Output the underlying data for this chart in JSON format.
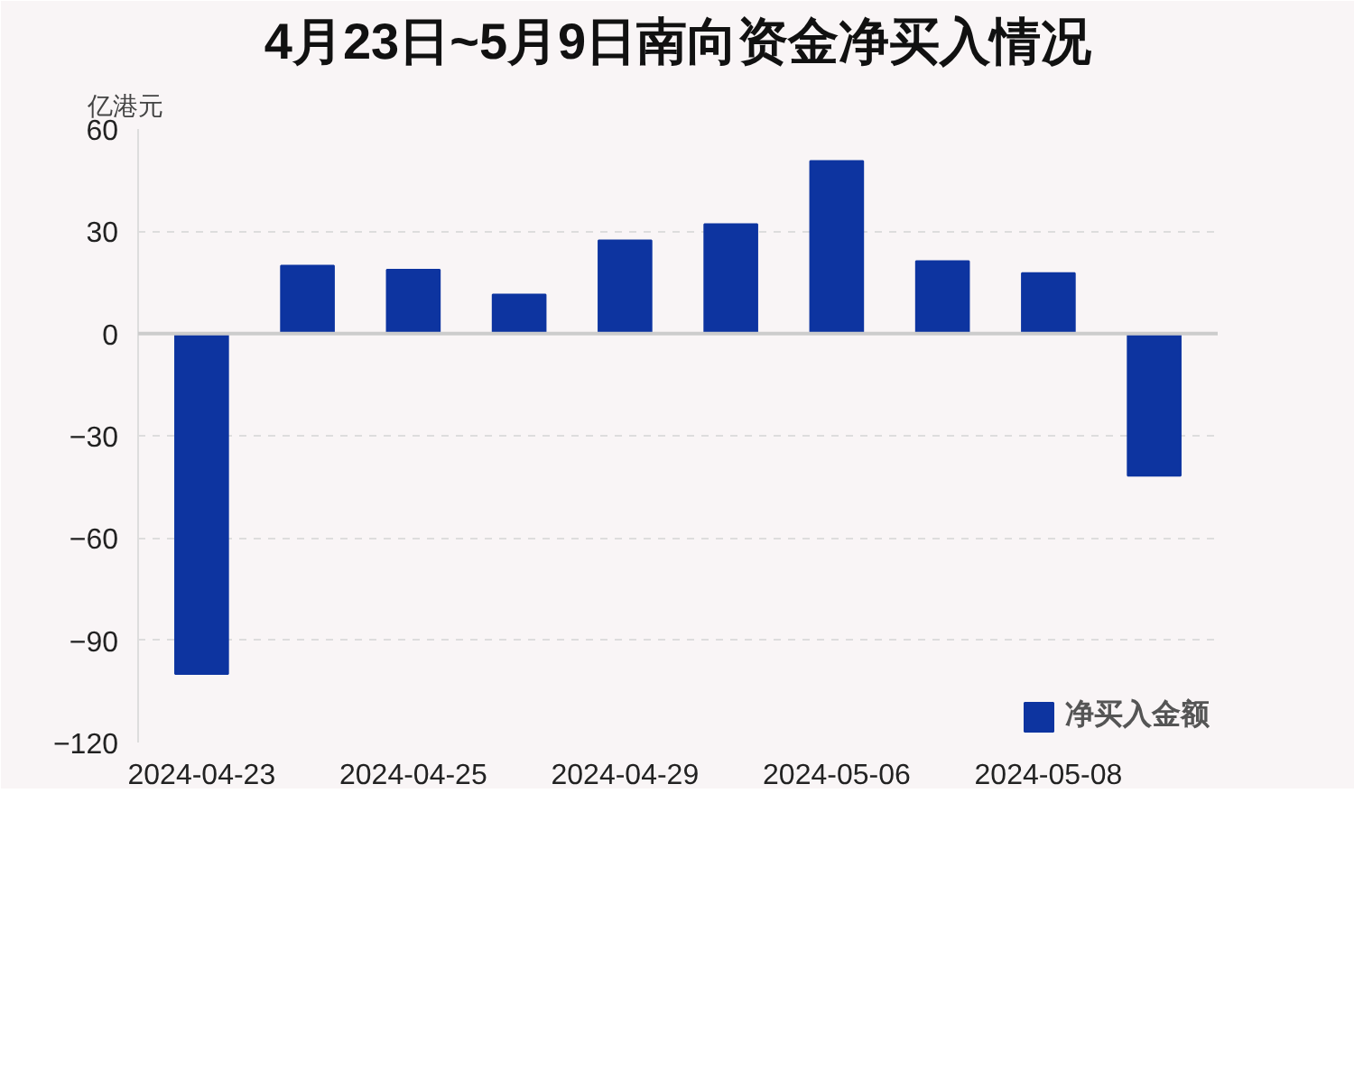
{
  "chart_data": {
    "type": "bar",
    "title": "4月23日~5月9日南向资金净买入情况",
    "ylabel": "亿港元",
    "categories": [
      "2024-04-23",
      null,
      "2024-04-25",
      null,
      "2024-04-29",
      null,
      "2024-05-06",
      null,
      "2024-05-08",
      null
    ],
    "series": [
      {
        "name": "净买入金额",
        "color": "#0d34a0",
        "values": [
          -99.9,
          19.9,
          18.7,
          11.4,
          27.3,
          32.1,
          50.6,
          21.2,
          17.7,
          -41.7
        ]
      }
    ],
    "ylim": [
      -120,
      60
    ],
    "yticks": [
      -120,
      -90,
      -60,
      -30,
      0,
      30,
      60
    ],
    "grid": "y",
    "legend": "bottom right"
  }
}
